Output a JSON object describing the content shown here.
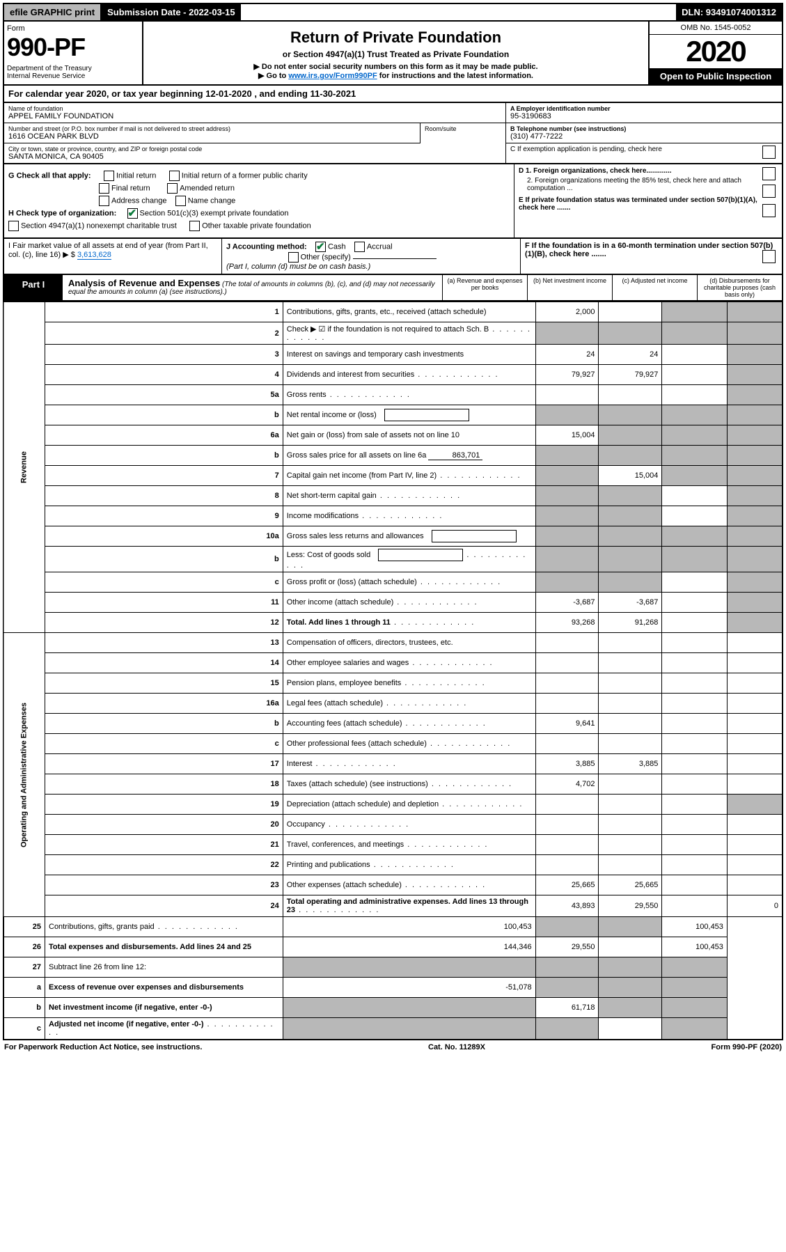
{
  "topbar": {
    "efile": "efile GRAPHIC print",
    "subdate_label": "Submission Date - 2022-03-15",
    "dln": "DLN: 93491074001312"
  },
  "header": {
    "form_label": "Form",
    "form_no": "990-PF",
    "dept": "Department of the Treasury\nInternal Revenue Service",
    "title": "Return of Private Foundation",
    "sub1": "or Section 4947(a)(1) Trust Treated as Private Foundation",
    "sub2a": "▶ Do not enter social security numbers on this form as it may be made public.",
    "sub2b": "▶ Go to ",
    "link": "www.irs.gov/Form990PF",
    "sub2c": " for instructions and the latest information.",
    "omb": "OMB No. 1545-0052",
    "year": "2020",
    "open": "Open to Public Inspection"
  },
  "cal": "For calendar year 2020, or tax year beginning 12-01-2020            , and ending 11-30-2021",
  "info": {
    "name_lbl": "Name of foundation",
    "name_val": "APPEL FAMILY FOUNDATION",
    "addr_lbl": "Number and street (or P.O. box number if mail is not delivered to street address)",
    "addr_val": "1616 OCEAN PARK BLVD",
    "room_lbl": "Room/suite",
    "city_lbl": "City or town, state or province, country, and ZIP or foreign postal code",
    "city_val": "SANTA MONICA, CA  90405",
    "ein_lbl": "A Employer identification number",
    "ein_val": "95-3190683",
    "tel_lbl": "B Telephone number (see instructions)",
    "tel_val": "(310) 477-7222",
    "c_lbl": "C If exemption application is pending, check here",
    "d1": "D 1. Foreign organizations, check here.............",
    "d2": "2. Foreign organizations meeting the 85% test, check here and attach computation ...",
    "e": "E  If private foundation status was terminated under section 507(b)(1)(A), check here .......",
    "f": "F  If the foundation is in a 60-month termination under section 507(b)(1)(B), check here .......",
    "g_lbl": "G Check all that apply:",
    "g_opts": [
      "Initial return",
      "Initial return of a former public charity",
      "Final return",
      "Amended return",
      "Address change",
      "Name change"
    ],
    "h_lbl": "H Check type of organization:",
    "h_opts": [
      "Section 501(c)(3) exempt private foundation",
      "Section 4947(a)(1) nonexempt charitable trust",
      "Other taxable private foundation"
    ],
    "i_lbl": "I Fair market value of all assets at end of year (from Part II, col. (c), line 16) ▶ $",
    "i_val": "3,613,628",
    "j_lbl": "J Accounting method:",
    "j_opts": [
      "Cash",
      "Accrual",
      "Other (specify)"
    ],
    "j_note": "(Part I, column (d) must be on cash basis.)"
  },
  "part1": {
    "tab": "Part I",
    "title": "Analysis of Revenue and Expenses",
    "title_note": "(The total of amounts in columns (b), (c), and (d) may not necessarily equal the amounts in column (a) (see instructions).)",
    "cols": {
      "a": "(a)  Revenue and expenses per books",
      "b": "(b)  Net investment income",
      "c": "(c)  Adjusted net income",
      "d": "(d)  Disbursements for charitable purposes (cash basis only)"
    }
  },
  "sidelabels": {
    "rev": "Revenue",
    "ope": "Operating and Administrative Expenses"
  },
  "rows": [
    {
      "n": "1",
      "d": "Contributions, gifts, grants, etc., received (attach schedule)",
      "a": "2,000",
      "b": "",
      "c": "sh",
      "dd": "sh"
    },
    {
      "n": "2",
      "d": "Check ▶ ☑ if the foundation is not required to attach Sch. B",
      "dots": true,
      "a": "sh",
      "b": "sh",
      "c": "sh",
      "dd": "sh"
    },
    {
      "n": "3",
      "d": "Interest on savings and temporary cash investments",
      "a": "24",
      "b": "24",
      "c": "",
      "dd": "sh"
    },
    {
      "n": "4",
      "d": "Dividends and interest from securities",
      "dots": true,
      "a": "79,927",
      "b": "79,927",
      "c": "",
      "dd": "sh"
    },
    {
      "n": "5a",
      "d": "Gross rents",
      "dots": true,
      "a": "",
      "b": "",
      "c": "",
      "dd": "sh"
    },
    {
      "n": "b",
      "d": "Net rental income or (loss)",
      "box": true,
      "a": "sh",
      "b": "sh",
      "c": "sh",
      "dd": "sh"
    },
    {
      "n": "6a",
      "d": "Net gain or (loss) from sale of assets not on line 10",
      "a": "15,004",
      "b": "sh",
      "c": "sh",
      "dd": "sh"
    },
    {
      "n": "b",
      "d": "Gross sales price for all assets on line 6a",
      "underline": "863,701",
      "a": "sh",
      "b": "sh",
      "c": "sh",
      "dd": "sh"
    },
    {
      "n": "7",
      "d": "Capital gain net income (from Part IV, line 2)",
      "dots": true,
      "a": "sh",
      "b": "15,004",
      "c": "sh",
      "dd": "sh"
    },
    {
      "n": "8",
      "d": "Net short-term capital gain",
      "dots": true,
      "a": "sh",
      "b": "sh",
      "c": "",
      "dd": "sh"
    },
    {
      "n": "9",
      "d": "Income modifications",
      "dots": true,
      "a": "sh",
      "b": "sh",
      "c": "",
      "dd": "sh"
    },
    {
      "n": "10a",
      "d": "Gross sales less returns and allowances",
      "box": true,
      "a": "sh",
      "b": "sh",
      "c": "sh",
      "dd": "sh"
    },
    {
      "n": "b",
      "d": "Less: Cost of goods sold",
      "dots": true,
      "box": true,
      "a": "sh",
      "b": "sh",
      "c": "sh",
      "dd": "sh"
    },
    {
      "n": "c",
      "d": "Gross profit or (loss) (attach schedule)",
      "dots": true,
      "a": "sh",
      "b": "sh",
      "c": "",
      "dd": "sh"
    },
    {
      "n": "11",
      "d": "Other income (attach schedule)",
      "dots": true,
      "a": "-3,687",
      "b": "-3,687",
      "c": "",
      "dd": "sh"
    },
    {
      "n": "12",
      "d": "Total. Add lines 1 through 11",
      "bold": true,
      "dots": true,
      "a": "93,268",
      "b": "91,268",
      "c": "",
      "dd": "sh"
    },
    {
      "n": "13",
      "d": "Compensation of officers, directors, trustees, etc.",
      "a": "",
      "b": "",
      "c": "",
      "dd": ""
    },
    {
      "n": "14",
      "d": "Other employee salaries and wages",
      "dots": true,
      "a": "",
      "b": "",
      "c": "",
      "dd": ""
    },
    {
      "n": "15",
      "d": "Pension plans, employee benefits",
      "dots": true,
      "a": "",
      "b": "",
      "c": "",
      "dd": ""
    },
    {
      "n": "16a",
      "d": "Legal fees (attach schedule)",
      "dots": true,
      "a": "",
      "b": "",
      "c": "",
      "dd": ""
    },
    {
      "n": "b",
      "d": "Accounting fees (attach schedule)",
      "dots": true,
      "a": "9,641",
      "b": "",
      "c": "",
      "dd": ""
    },
    {
      "n": "c",
      "d": "Other professional fees (attach schedule)",
      "dots": true,
      "a": "",
      "b": "",
      "c": "",
      "dd": ""
    },
    {
      "n": "17",
      "d": "Interest",
      "dots": true,
      "a": "3,885",
      "b": "3,885",
      "c": "",
      "dd": ""
    },
    {
      "n": "18",
      "d": "Taxes (attach schedule) (see instructions)",
      "dots": true,
      "a": "4,702",
      "b": "",
      "c": "",
      "dd": ""
    },
    {
      "n": "19",
      "d": "Depreciation (attach schedule) and depletion",
      "dots": true,
      "a": "",
      "b": "",
      "c": "",
      "dd": "sh"
    },
    {
      "n": "20",
      "d": "Occupancy",
      "dots": true,
      "a": "",
      "b": "",
      "c": "",
      "dd": ""
    },
    {
      "n": "21",
      "d": "Travel, conferences, and meetings",
      "dots": true,
      "a": "",
      "b": "",
      "c": "",
      "dd": ""
    },
    {
      "n": "22",
      "d": "Printing and publications",
      "dots": true,
      "a": "",
      "b": "",
      "c": "",
      "dd": ""
    },
    {
      "n": "23",
      "d": "Other expenses (attach schedule)",
      "dots": true,
      "a": "25,665",
      "b": "25,665",
      "c": "",
      "dd": ""
    },
    {
      "n": "24",
      "d": "Total operating and administrative expenses. Add lines 13 through 23",
      "bold": true,
      "dots": true,
      "a": "43,893",
      "b": "29,550",
      "c": "",
      "dd": "0"
    },
    {
      "n": "25",
      "d": "Contributions, gifts, grants paid",
      "dots": true,
      "a": "100,453",
      "b": "sh",
      "c": "sh",
      "dd": "100,453"
    },
    {
      "n": "26",
      "d": "Total expenses and disbursements. Add lines 24 and 25",
      "bold": true,
      "a": "144,346",
      "b": "29,550",
      "c": "",
      "dd": "100,453"
    },
    {
      "n": "27",
      "d": "Subtract line 26 from line 12:",
      "a": "sh",
      "b": "sh",
      "c": "sh",
      "dd": "sh",
      "noside": true
    },
    {
      "n": "a",
      "d": "Excess of revenue over expenses and disbursements",
      "bold": true,
      "a": "-51,078",
      "b": "sh",
      "c": "sh",
      "dd": "sh",
      "noside": true
    },
    {
      "n": "b",
      "d": "Net investment income (if negative, enter -0-)",
      "bold": true,
      "a": "sh",
      "b": "61,718",
      "c": "sh",
      "dd": "sh",
      "noside": true
    },
    {
      "n": "c",
      "d": "Adjusted net income (if negative, enter -0-)",
      "bold": true,
      "dots": true,
      "a": "sh",
      "b": "sh",
      "c": "",
      "dd": "sh",
      "noside": true
    }
  ],
  "footer": {
    "left": "For Paperwork Reduction Act Notice, see instructions.",
    "mid": "Cat. No. 11289X",
    "right": "Form 990-PF (2020)"
  }
}
